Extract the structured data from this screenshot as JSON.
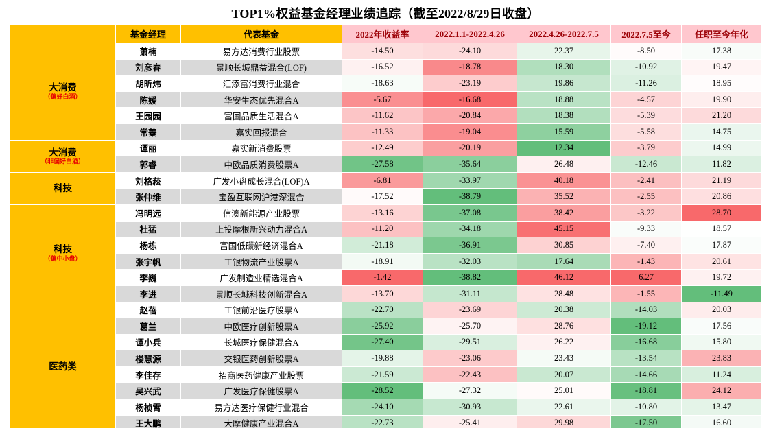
{
  "title": "TOP1%权益基金经理业绩追踪（截至2022/8/29日收盘）",
  "colors": {
    "header_yellow": "#FFC000",
    "header_pink": "#FFC7CE",
    "header_pink_text": "#9C0006",
    "band_gray": "#D9D9D9",
    "sublabel_red": "#E60000",
    "group_divider": "#000000",
    "heat_red": "#F8696B",
    "heat_mid": "#FFFFFF",
    "heat_green": "#63BE7B"
  },
  "chart_data": {
    "type": "table",
    "title": "TOP1%权益基金经理业绩追踪（截至2022/8/29日收盘）",
    "headers": [
      "",
      "基金经理",
      "代表基金",
      "2022年收益率",
      "2022.1.1-2022.4.26",
      "2022.4.26-2022.7.5",
      "2022.7.5至今",
      "任职至今年化"
    ],
    "value_columns": [
      "2022年收益率",
      "2022.1.1-2022.4.26",
      "2022.4.26-2022.7.5",
      "2022.7.5至今",
      "任职至今年化"
    ],
    "heatmap": "per-column red=max white=median green=min",
    "groups": [
      {
        "label": "大消费",
        "sublabel": "（偏好白酒）",
        "rows": [
          {
            "manager": "萧楠",
            "fund": "易方达消费行业股票",
            "values": [
              -14.5,
              -24.1,
              22.37,
              -8.5,
              17.38
            ]
          },
          {
            "manager": "刘彦春",
            "fund": "景顺长城鼎益混合(LOF)",
            "values": [
              -16.52,
              -18.78,
              18.3,
              -10.92,
              19.47
            ]
          },
          {
            "manager": "胡昕炜",
            "fund": "汇添富消费行业混合",
            "values": [
              -18.63,
              -23.19,
              19.86,
              -11.26,
              18.95
            ]
          },
          {
            "manager": "陈媛",
            "fund": "华安生态优先混合A",
            "values": [
              -5.67,
              -16.68,
              18.88,
              -4.57,
              19.9
            ]
          },
          {
            "manager": "王园园",
            "fund": "富国品质生活混合A",
            "values": [
              -11.62,
              -20.84,
              18.38,
              -5.39,
              21.2
            ]
          },
          {
            "manager": "常蓁",
            "fund": "嘉实回报混合",
            "values": [
              -11.33,
              -19.04,
              15.59,
              -5.58,
              14.75
            ]
          }
        ]
      },
      {
        "label": "大消费",
        "sublabel": "（非偏好白酒）",
        "rows": [
          {
            "manager": "谭丽",
            "fund": "嘉实新消费股票",
            "values": [
              -12.49,
              -20.19,
              12.34,
              -3.79,
              14.99
            ]
          },
          {
            "manager": "郭睿",
            "fund": "中欧品质消费股票A",
            "values": [
              -27.58,
              -35.64,
              26.48,
              -12.46,
              11.82
            ]
          }
        ]
      },
      {
        "label": "科技",
        "sublabel": "",
        "rows": [
          {
            "manager": "刘格菘",
            "fund": "广发小盘成长混合(LOF)A",
            "values": [
              -6.81,
              -33.97,
              40.18,
              -2.41,
              21.19
            ]
          },
          {
            "manager": "张仲维",
            "fund": "宝盈互联网沪港深混合",
            "values": [
              -17.52,
              -38.79,
              35.52,
              -2.55,
              20.86
            ]
          }
        ]
      },
      {
        "label": "科技",
        "sublabel": "（偏中小盘）",
        "rows": [
          {
            "manager": "冯明远",
            "fund": "信澳新能源产业股票",
            "values": [
              -13.16,
              -37.08,
              38.42,
              -3.22,
              28.7
            ]
          },
          {
            "manager": "杜猛",
            "fund": "上投摩根新兴动力混合A",
            "values": [
              -11.2,
              -34.18,
              45.15,
              -9.33,
              18.57
            ]
          },
          {
            "manager": "杨栋",
            "fund": "富国低碳新经济混合A",
            "values": [
              -21.18,
              -36.91,
              30.85,
              -7.4,
              17.87
            ]
          },
          {
            "manager": "张宇帆",
            "fund": "工银物流产业股票A",
            "values": [
              -18.91,
              -32.03,
              17.64,
              -1.43,
              20.61
            ]
          },
          {
            "manager": "李巍",
            "fund": "广发制造业精选混合A",
            "values": [
              -1.42,
              -38.82,
              46.12,
              6.27,
              19.72
            ]
          },
          {
            "manager": "李进",
            "fund": "景顺长城科技创新混合A",
            "values": [
              -13.7,
              -31.11,
              28.48,
              -1.55,
              -11.49
            ]
          }
        ]
      },
      {
        "label": "医药类",
        "sublabel": "",
        "rows": [
          {
            "manager": "赵蓓",
            "fund": "工银前沿医疗股票A",
            "values": [
              -22.7,
              -23.69,
              20.38,
              -14.03,
              20.03
            ]
          },
          {
            "manager": "葛兰",
            "fund": "中欧医疗创新股票A",
            "values": [
              -25.92,
              -25.7,
              28.76,
              -19.12,
              17.56
            ]
          },
          {
            "manager": "谭小兵",
            "fund": "长城医疗保健混合A",
            "values": [
              -27.4,
              -29.51,
              26.22,
              -16.68,
              15.8
            ]
          },
          {
            "manager": "楼慧源",
            "fund": "交银医药创新股票A",
            "values": [
              -19.88,
              -23.06,
              23.43,
              -13.54,
              23.83
            ]
          },
          {
            "manager": "李佳存",
            "fund": "招商医药健康产业股票",
            "values": [
              -21.59,
              -22.43,
              20.07,
              -14.66,
              11.24
            ]
          },
          {
            "manager": "吴兴武",
            "fund": "广发医疗保健股票A",
            "values": [
              -28.52,
              -27.32,
              25.01,
              -18.81,
              24.12
            ]
          },
          {
            "manager": "杨桢霄",
            "fund": "易方达医疗保健行业混合",
            "values": [
              -24.1,
              -30.93,
              22.61,
              -10.8,
              13.47
            ]
          },
          {
            "manager": "王大鹏",
            "fund": "大摩健康产业混合A",
            "values": [
              -22.73,
              -25.41,
              29.98,
              -17.5,
              16.6
            ]
          }
        ]
      }
    ]
  }
}
